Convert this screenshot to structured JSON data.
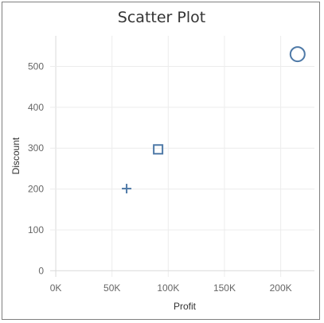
{
  "chart_data": {
    "type": "scatter",
    "title": "Scatter Plot",
    "xlabel": "Profit",
    "ylabel": "Discount",
    "xlim": [
      -5000,
      230000
    ],
    "ylim": [
      -15,
      575
    ],
    "x_ticks": [
      {
        "value": 0,
        "label": "0K"
      },
      {
        "value": 50000,
        "label": "50K"
      },
      {
        "value": 100000,
        "label": "100K"
      },
      {
        "value": 150000,
        "label": "150K"
      },
      {
        "value": 200000,
        "label": "200K"
      }
    ],
    "y_ticks": [
      {
        "value": 0,
        "label": "0"
      },
      {
        "value": 100,
        "label": "100"
      },
      {
        "value": 200,
        "label": "200"
      },
      {
        "value": 300,
        "label": "300"
      },
      {
        "value": 400,
        "label": "400"
      },
      {
        "value": 500,
        "label": "500"
      }
    ],
    "grid": true,
    "legend": "none",
    "color": "#4e79a7",
    "points": [
      {
        "x": 63000,
        "y": 201,
        "shape": "plus"
      },
      {
        "x": 91000,
        "y": 297,
        "shape": "square"
      },
      {
        "x": 215000,
        "y": 530,
        "shape": "circle"
      }
    ]
  }
}
